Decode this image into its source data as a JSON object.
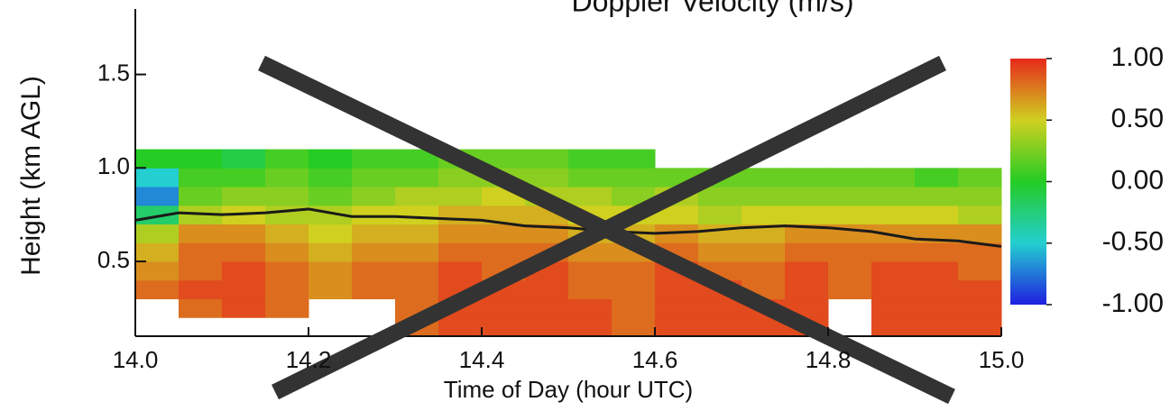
{
  "chart_data": {
    "type": "heatmap",
    "title": "Doppler Velocity (m/s)",
    "xlabel": "Time of Day (hour UTC)",
    "ylabel": "Height (km AGL)",
    "x": [
      14.0,
      14.05,
      14.1,
      14.15,
      14.2,
      14.25,
      14.3,
      14.35,
      14.4,
      14.45,
      14.5,
      14.55,
      14.6,
      14.65,
      14.7,
      14.75,
      14.8,
      14.85,
      14.9,
      14.95,
      15.0
    ],
    "y": [
      0.1,
      0.2,
      0.3,
      0.4,
      0.5,
      0.6,
      0.7,
      0.8,
      0.9,
      1.0,
      1.1
    ],
    "z": [
      [
        null,
        null,
        null,
        null,
        null,
        null,
        0.8,
        0.9,
        0.9,
        0.9,
        0.9,
        0.8,
        0.9,
        0.9,
        0.9,
        0.9,
        null,
        0.9,
        0.9,
        0.9
      ],
      [
        null,
        0.8,
        0.9,
        0.8,
        null,
        null,
        0.8,
        0.9,
        0.9,
        0.9,
        0.9,
        0.8,
        0.9,
        0.9,
        0.9,
        0.9,
        null,
        0.9,
        0.9,
        0.9
      ],
      [
        0.8,
        0.9,
        0.9,
        0.8,
        0.7,
        0.8,
        0.8,
        0.9,
        0.9,
        0.9,
        0.8,
        0.8,
        0.9,
        0.9,
        0.8,
        0.9,
        0.8,
        0.9,
        0.9,
        0.9
      ],
      [
        0.7,
        0.8,
        0.9,
        0.8,
        0.7,
        0.8,
        0.8,
        0.9,
        0.8,
        0.9,
        0.8,
        0.8,
        0.9,
        0.8,
        0.8,
        0.9,
        0.8,
        0.9,
        0.9,
        0.8
      ],
      [
        0.6,
        0.8,
        0.8,
        0.7,
        0.6,
        0.7,
        0.7,
        0.8,
        0.8,
        0.8,
        0.7,
        0.7,
        0.8,
        0.7,
        0.7,
        0.8,
        0.8,
        0.8,
        0.8,
        0.8
      ],
      [
        0.4,
        0.7,
        0.7,
        0.6,
        0.5,
        0.6,
        0.6,
        0.7,
        0.7,
        0.7,
        0.6,
        0.6,
        0.7,
        0.6,
        0.6,
        0.7,
        0.7,
        0.7,
        0.7,
        0.7
      ],
      [
        -0.2,
        0.4,
        0.5,
        0.4,
        0.4,
        0.5,
        0.5,
        0.6,
        0.6,
        0.6,
        0.5,
        0.5,
        0.5,
        0.4,
        0.5,
        0.5,
        0.5,
        0.5,
        0.5,
        0.4
      ],
      [
        -0.7,
        0.2,
        0.3,
        0.3,
        0.2,
        0.3,
        0.4,
        0.4,
        0.5,
        0.4,
        0.4,
        0.3,
        0.4,
        0.3,
        0.3,
        0.3,
        0.3,
        0.3,
        0.3,
        0.3
      ],
      [
        -0.5,
        0.1,
        0.1,
        0.2,
        0.1,
        0.2,
        0.2,
        0.3,
        0.3,
        0.3,
        0.2,
        0.2,
        0.2,
        0.2,
        0.2,
        0.2,
        0.2,
        0.2,
        0.1,
        0.2
      ],
      [
        0.0,
        0.0,
        -0.1,
        0.1,
        0.0,
        0.1,
        0.1,
        0.2,
        0.2,
        0.2,
        0.1,
        0.1,
        null,
        null,
        null,
        null,
        null,
        null,
        null,
        null
      ]
    ],
    "line": {
      "color": "#1a1a1a",
      "x": [
        14.0,
        14.05,
        14.1,
        14.15,
        14.2,
        14.25,
        14.3,
        14.35,
        14.4,
        14.45,
        14.5,
        14.55,
        14.6,
        14.65,
        14.7,
        14.75,
        14.8,
        14.85,
        14.9,
        14.95,
        15.0
      ],
      "values": [
        0.72,
        0.76,
        0.75,
        0.76,
        0.78,
        0.74,
        0.74,
        0.73,
        0.72,
        0.69,
        0.68,
        0.66,
        0.65,
        0.66,
        0.68,
        0.69,
        0.68,
        0.66,
        0.62,
        0.61,
        0.58
      ]
    },
    "colorscale": [
      "#1f1fe0",
      "#23cfd0",
      "#24cc24",
      "#d0d020",
      "#e62a1c"
    ],
    "zlim": [
      -1,
      1
    ],
    "zticks": [
      {
        "value": 1,
        "label": "1.00"
      },
      {
        "value": 0.5,
        "label": "0.50"
      },
      {
        "value": 0,
        "label": "0.00"
      },
      {
        "value": -0.5,
        "label": "-0.50"
      },
      {
        "value": -1,
        "label": "-1.00"
      }
    ],
    "xlim": [
      14.0,
      15.0
    ],
    "xticks": [
      {
        "value": 14,
        "label": "14.0"
      },
      14.2,
      14.4,
      14.6,
      14.8,
      {
        "value": 15,
        "label": "15.0"
      }
    ],
    "ylim": [
      0.1,
      1.85
    ],
    "yticks": [
      0.5,
      {
        "value": 1,
        "label": "1.0"
      },
      1.5
    ]
  }
}
